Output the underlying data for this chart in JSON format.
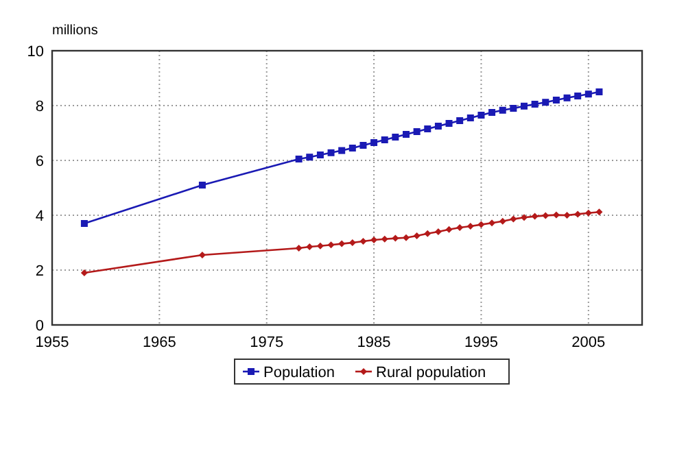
{
  "chart_data": {
    "type": "line",
    "ylabel": "millions",
    "xlim": [
      1955,
      2010
    ],
    "xticks": [
      1955,
      1965,
      1975,
      1985,
      1995,
      2005
    ],
    "ylim": [
      0,
      10
    ],
    "yticks": [
      0,
      2,
      4,
      6,
      8,
      10
    ],
    "grid": true,
    "legend": "bottom",
    "x": [
      1958,
      1969,
      1978,
      1979,
      1980,
      1981,
      1982,
      1983,
      1984,
      1985,
      1986,
      1987,
      1988,
      1989,
      1990,
      1991,
      1992,
      1993,
      1994,
      1995,
      1996,
      1997,
      1998,
      1999,
      2000,
      2001,
      2002,
      2003,
      2004,
      2005,
      2006
    ],
    "series": [
      {
        "name": "Population",
        "color": "#1a1ab4",
        "marker": "square",
        "values": [
          3.7,
          5.1,
          6.05,
          6.12,
          6.2,
          6.28,
          6.36,
          6.45,
          6.55,
          6.65,
          6.75,
          6.85,
          6.95,
          7.05,
          7.15,
          7.25,
          7.35,
          7.45,
          7.55,
          7.65,
          7.75,
          7.83,
          7.9,
          7.98,
          8.05,
          8.12,
          8.2,
          8.28,
          8.35,
          8.42,
          8.5
        ]
      },
      {
        "name": "Rural population",
        "color": "#b41a1a",
        "marker": "diamond",
        "values": [
          1.9,
          2.55,
          2.8,
          2.85,
          2.88,
          2.92,
          2.96,
          3.0,
          3.05,
          3.1,
          3.13,
          3.16,
          3.18,
          3.25,
          3.33,
          3.4,
          3.48,
          3.55,
          3.6,
          3.66,
          3.72,
          3.78,
          3.86,
          3.92,
          3.96,
          3.99,
          4.01,
          4.0,
          4.04,
          4.08,
          4.12
        ]
      }
    ]
  }
}
